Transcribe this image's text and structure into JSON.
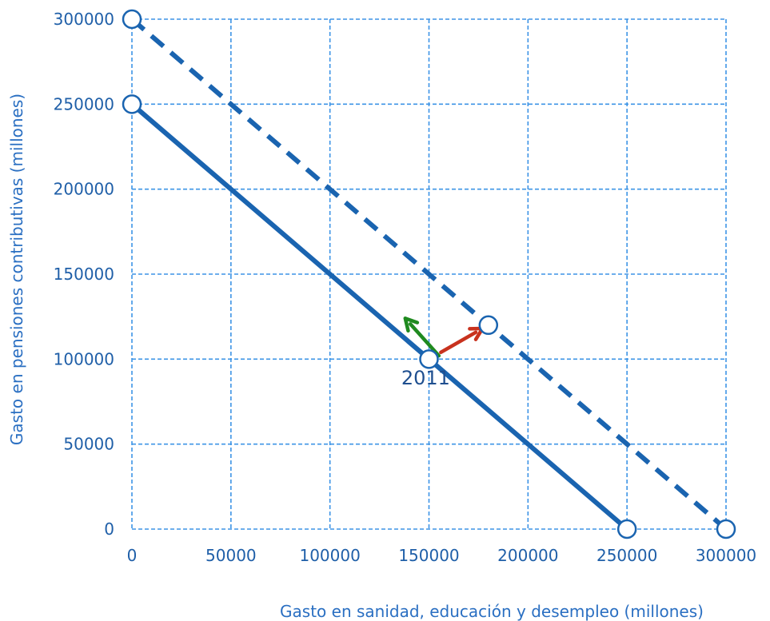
{
  "colors": {
    "grid": "#3d94e6",
    "line": "#1a64b0",
    "tick_text": "#1f5fa8",
    "axis_title": "#2a6fc2",
    "arrow_green": "#1f8a1f",
    "arrow_red": "#c8321e",
    "marker_fill": "#ffffff"
  },
  "chart_data": {
    "type": "line",
    "xlabel": "Gasto en sanidad, educación y desempleo (millones)",
    "ylabel": "Gasto en pensiones contributivas  (millones)",
    "xlim": [
      0,
      300000
    ],
    "ylim": [
      0,
      300000
    ],
    "xticks": [
      "0",
      "50000",
      "100000",
      "150000",
      "200000",
      "250000",
      "300000"
    ],
    "yticks": [
      "0",
      "50000",
      "100000",
      "150000",
      "200000",
      "250000",
      "300000"
    ],
    "grid": true,
    "series": [
      {
        "style": "solid",
        "x": [
          0,
          250000
        ],
        "y": [
          250000,
          0
        ]
      },
      {
        "style": "dashed",
        "x": [
          0,
          300000
        ],
        "y": [
          300000,
          0
        ]
      }
    ],
    "points": [
      {
        "x": 0,
        "y": 250000
      },
      {
        "x": 250000,
        "y": 0
      },
      {
        "x": 0,
        "y": 300000
      },
      {
        "x": 300000,
        "y": 0
      },
      {
        "x": 150000,
        "y": 100000
      },
      {
        "x": 180000,
        "y": 120000
      }
    ],
    "arrows": [
      {
        "color": "green",
        "from": [
          155000,
          102000
        ],
        "to": [
          138000,
          124000
        ]
      },
      {
        "color": "red",
        "from": [
          156000,
          104000
        ],
        "to": [
          177000,
          118000
        ]
      }
    ],
    "annotations": [
      {
        "text": "2011",
        "x": 136000,
        "y": 85000
      }
    ]
  }
}
